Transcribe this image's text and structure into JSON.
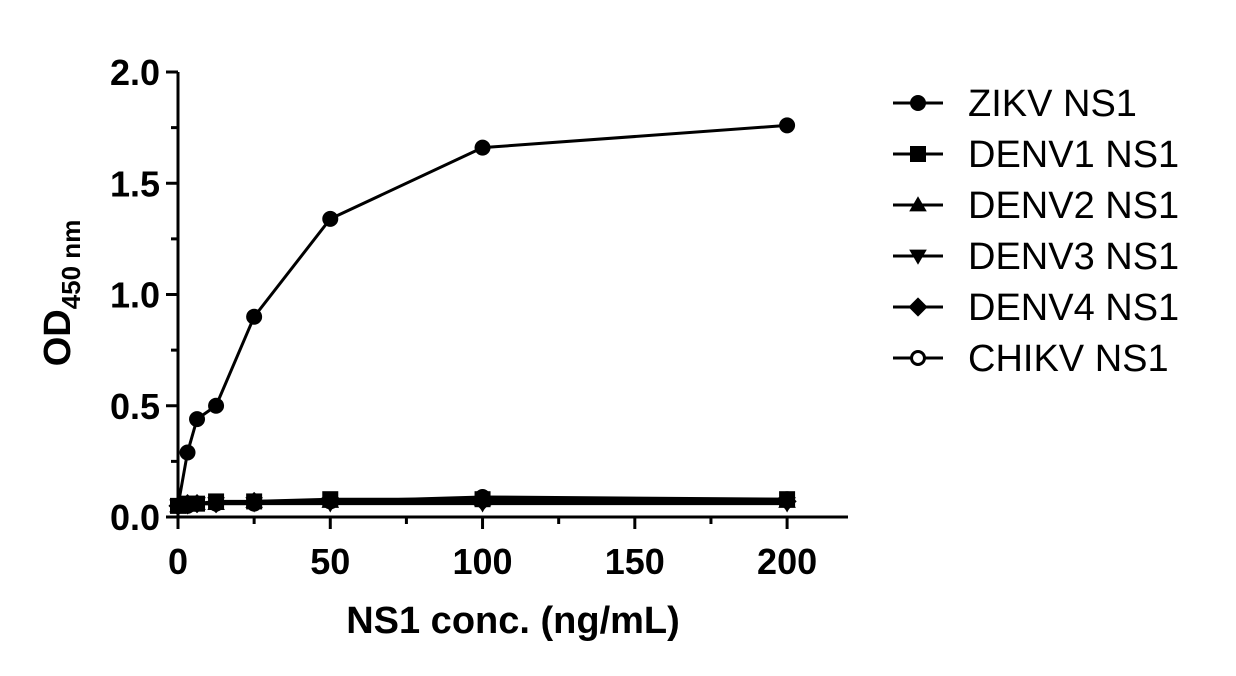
{
  "chart_data": {
    "type": "line",
    "title": "",
    "xlabel": "NS1 conc. (ng/mL)",
    "ylabel": "OD",
    "ylabel_subscript": "450 nm",
    "xlim": [
      0,
      220
    ],
    "ylim": [
      0,
      2.0
    ],
    "x_ticks": [
      0,
      50,
      100,
      150,
      200
    ],
    "x_tick_labels": [
      "0",
      "50",
      "100",
      "150",
      "200"
    ],
    "y_ticks": [
      0,
      0.5,
      1.0,
      1.5,
      2.0
    ],
    "y_tick_labels": [
      "0.0",
      "0.5",
      "1.0",
      "1.5",
      "2.0"
    ],
    "grid": false,
    "legend_position": "right",
    "x": [
      0,
      3.125,
      6.25,
      12.5,
      25,
      50,
      100,
      200
    ],
    "series": [
      {
        "name": "ZIKV NS1",
        "marker": "circle",
        "values": [
          0.05,
          0.29,
          0.44,
          0.5,
          0.9,
          1.34,
          1.66,
          1.76
        ]
      },
      {
        "name": "DENV1 NS1",
        "marker": "square",
        "values": [
          0.05,
          0.06,
          0.06,
          0.07,
          0.07,
          0.08,
          0.08,
          0.08
        ]
      },
      {
        "name": "DENV2 NS1",
        "marker": "triangle-up",
        "values": [
          0.05,
          0.06,
          0.06,
          0.06,
          0.07,
          0.07,
          0.08,
          0.07
        ]
      },
      {
        "name": "DENV3 NS1",
        "marker": "triangle-down",
        "values": [
          0.05,
          0.05,
          0.06,
          0.06,
          0.06,
          0.06,
          0.06,
          0.06
        ]
      },
      {
        "name": "DENV4 NS1",
        "marker": "diamond",
        "values": [
          0.05,
          0.06,
          0.06,
          0.06,
          0.07,
          0.07,
          0.07,
          0.07
        ]
      },
      {
        "name": "CHIKV NS1",
        "marker": "open-circle",
        "values": [
          0.05,
          0.05,
          0.06,
          0.06,
          0.06,
          0.07,
          0.09,
          0.08
        ]
      }
    ]
  }
}
